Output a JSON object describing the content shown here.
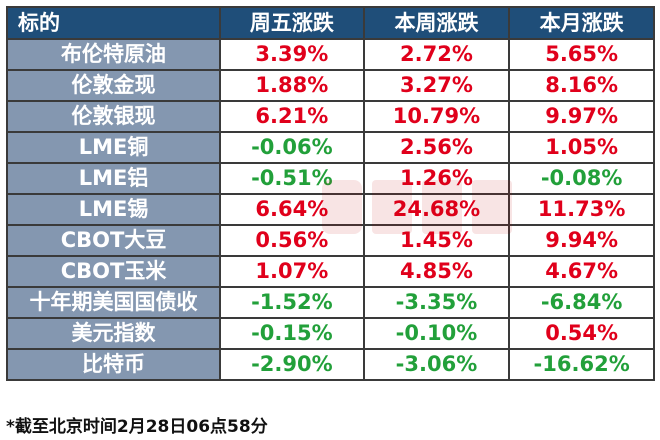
{
  "header": {
    "col_name": "标的",
    "col_friday": "周五涨跌",
    "col_week": "本周涨跌",
    "col_month": "本月涨跌"
  },
  "rows": [
    {
      "name": "布伦特原油",
      "friday": "3.39%",
      "week": "2.72%",
      "month": "5.65%"
    },
    {
      "name": "伦敦金现",
      "friday": "1.88%",
      "week": "3.27%",
      "month": "8.16%"
    },
    {
      "name": "伦敦银现",
      "friday": "6.21%",
      "week": "10.79%",
      "month": "9.97%"
    },
    {
      "name": "LME铜",
      "friday": "-0.06%",
      "week": "2.56%",
      "month": "1.05%"
    },
    {
      "name": "LME铝",
      "friday": "-0.51%",
      "week": "1.26%",
      "month": "-0.08%"
    },
    {
      "name": "LME锡",
      "friday": "6.64%",
      "week": "24.68%",
      "month": "11.73%"
    },
    {
      "name": "CBOT大豆",
      "friday": "0.56%",
      "week": "1.45%",
      "month": "9.94%"
    },
    {
      "name": "CBOT玉米",
      "friday": "1.07%",
      "week": "4.85%",
      "month": "4.67%"
    },
    {
      "name": "十年期美国国债收",
      "friday": "-1.52%",
      "week": "-3.35%",
      "month": "-6.84%"
    },
    {
      "name": "美元指数",
      "friday": "-0.15%",
      "week": "-0.10%",
      "month": "0.54%"
    },
    {
      "name": "比特币",
      "friday": "-2.90%",
      "week": "-3.06%",
      "month": "-16.62%"
    }
  ],
  "footnote": "*截至北京时间2月28日06点58分",
  "colors": {
    "header_bg": "#1f4e79",
    "name_bg": "#8497b0",
    "up": "#e0001b",
    "down": "#22a03a"
  },
  "icons": {
    "watermark": "cailian-watermark-icon"
  }
}
